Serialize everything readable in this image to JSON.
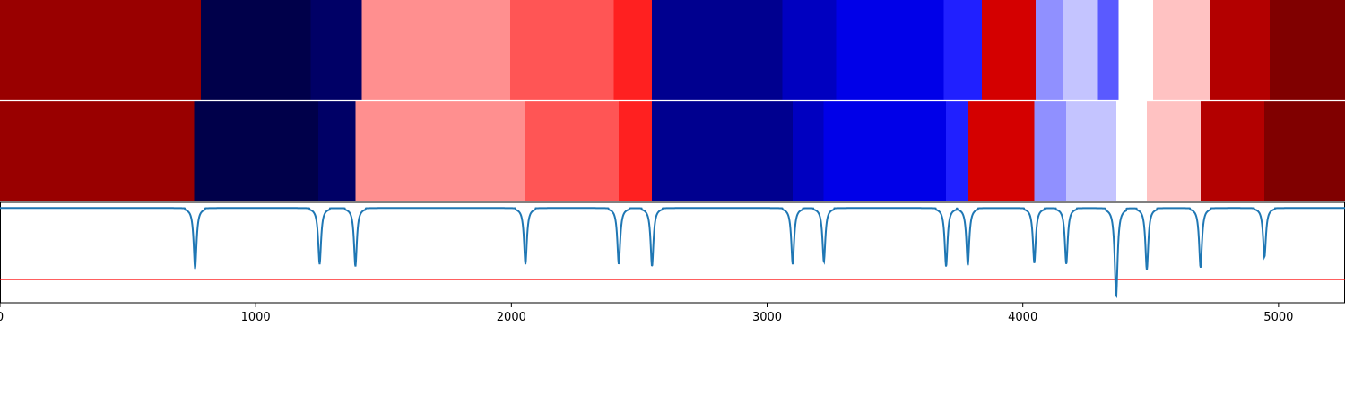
{
  "chart_data": {
    "type": "heatmap",
    "x_axis": {
      "range": [
        0,
        5260
      ],
      "ticks": [
        {
          "value": 0,
          "label": "0"
        },
        {
          "value": 1000,
          "label": "1000"
        },
        {
          "value": 2000,
          "label": "2000"
        },
        {
          "value": 3000,
          "label": "3000"
        },
        {
          "value": 4000,
          "label": "4000"
        },
        {
          "value": 5000,
          "label": "5000"
        }
      ]
    },
    "segmentation_rows": [
      {
        "segments": [
          {
            "start": 0,
            "end": 785,
            "color": "#990000"
          },
          {
            "start": 785,
            "end": 1215,
            "color": "#00004a"
          },
          {
            "start": 1215,
            "end": 1415,
            "color": "#000066"
          },
          {
            "start": 1415,
            "end": 1995,
            "color": "#ff8f8f"
          },
          {
            "start": 1995,
            "end": 2400,
            "color": "#ff5555"
          },
          {
            "start": 2400,
            "end": 2550,
            "color": "#ff2020"
          },
          {
            "start": 2550,
            "end": 3060,
            "color": "#00008f"
          },
          {
            "start": 3060,
            "end": 3270,
            "color": "#0000c0"
          },
          {
            "start": 3270,
            "end": 3690,
            "color": "#0000e8"
          },
          {
            "start": 3690,
            "end": 3840,
            "color": "#2020ff"
          },
          {
            "start": 3840,
            "end": 4050,
            "color": "#d40000"
          },
          {
            "start": 4050,
            "end": 4155,
            "color": "#9090ff"
          },
          {
            "start": 4155,
            "end": 4290,
            "color": "#c4c4ff"
          },
          {
            "start": 4290,
            "end": 4375,
            "color": "#5a5aff"
          },
          {
            "start": 4375,
            "end": 4510,
            "color": "#ffffff"
          },
          {
            "start": 4510,
            "end": 4730,
            "color": "#ffc2c2"
          },
          {
            "start": 4730,
            "end": 4965,
            "color": "#b30000"
          },
          {
            "start": 4965,
            "end": 5260,
            "color": "#800000"
          }
        ]
      },
      {
        "segments": [
          {
            "start": 0,
            "end": 760,
            "color": "#990000"
          },
          {
            "start": 760,
            "end": 1245,
            "color": "#00004a"
          },
          {
            "start": 1245,
            "end": 1390,
            "color": "#000066"
          },
          {
            "start": 1390,
            "end": 2055,
            "color": "#ff8f8f"
          },
          {
            "start": 2055,
            "end": 2420,
            "color": "#ff5555"
          },
          {
            "start": 2420,
            "end": 2550,
            "color": "#ff2020"
          },
          {
            "start": 2550,
            "end": 3100,
            "color": "#00008f"
          },
          {
            "start": 3100,
            "end": 3220,
            "color": "#0000c0"
          },
          {
            "start": 3220,
            "end": 3700,
            "color": "#0000e8"
          },
          {
            "start": 3700,
            "end": 3785,
            "color": "#2020ff"
          },
          {
            "start": 3785,
            "end": 4045,
            "color": "#d40000"
          },
          {
            "start": 4045,
            "end": 4170,
            "color": "#9090ff"
          },
          {
            "start": 4170,
            "end": 4365,
            "color": "#c4c4ff"
          },
          {
            "start": 4365,
            "end": 4485,
            "color": "#ffffff"
          },
          {
            "start": 4485,
            "end": 4695,
            "color": "#ffc2c2"
          },
          {
            "start": 4695,
            "end": 4945,
            "color": "#b30000"
          },
          {
            "start": 4945,
            "end": 5260,
            "color": "#800000"
          }
        ]
      }
    ],
    "score_trace": {
      "color": "#1f77b4",
      "baseline": 0,
      "y_range": [
        -0.95,
        0.12
      ],
      "dips": [
        {
          "x": 763,
          "depth": 0.52
        },
        {
          "x": 1250,
          "depth": 0.48
        },
        {
          "x": 1390,
          "depth": 0.5
        },
        {
          "x": 2055,
          "depth": 0.48
        },
        {
          "x": 2420,
          "depth": 0.48
        },
        {
          "x": 2550,
          "depth": 0.5
        },
        {
          "x": 3100,
          "depth": 0.48
        },
        {
          "x": 3222,
          "depth": 0.46
        },
        {
          "x": 3700,
          "depth": 0.5
        },
        {
          "x": 3785,
          "depth": 0.49
        },
        {
          "x": 4045,
          "depth": 0.47
        },
        {
          "x": 4170,
          "depth": 0.48
        },
        {
          "x": 4365,
          "depth": 0.76
        },
        {
          "x": 4485,
          "depth": 0.53
        },
        {
          "x": 4695,
          "depth": 0.51
        },
        {
          "x": 4945,
          "depth": 0.42
        }
      ],
      "threshold": {
        "value": -0.7,
        "color": "#ff0000"
      }
    }
  }
}
